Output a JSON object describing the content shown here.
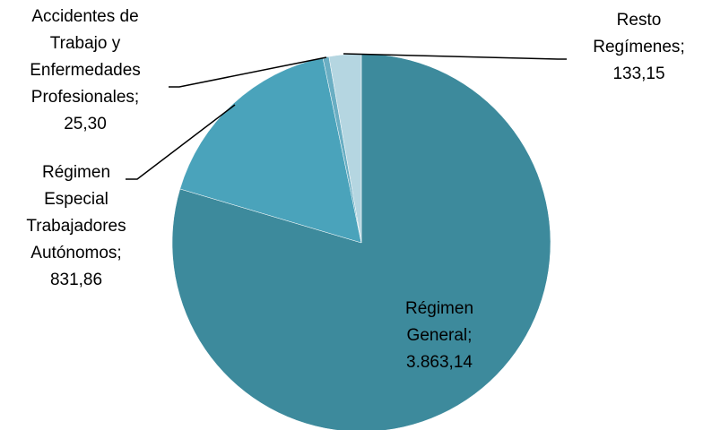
{
  "chart_data": {
    "type": "pie",
    "categories": [
      "Régimen General",
      "Régimen Especial Trabajadores Autónomos",
      "Accidentes de Trabajo y Enfermedades Profesionales",
      "Resto Regímenes"
    ],
    "values": [
      3863.14,
      831.86,
      25.3,
      133.15
    ],
    "value_labels": [
      "3.863,14",
      "831,86",
      "25,30",
      "133,15"
    ],
    "label_separator": ";",
    "colors": [
      "#3d8a9c",
      "#4aa3bb",
      "#6aaec3",
      "#b5d6e1"
    ]
  }
}
